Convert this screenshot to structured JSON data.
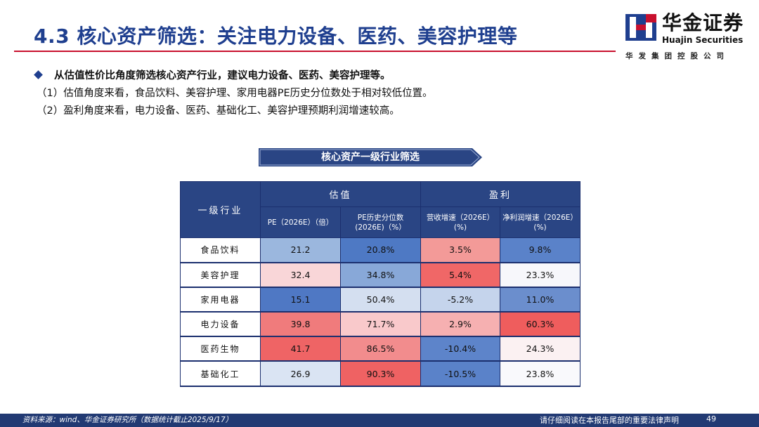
{
  "header": {
    "title": "4.3 核心资产筛选：关注电力设备、医药、美容护理等",
    "logo_cn": "华金证券",
    "logo_en": "Huajin Securities",
    "logo_sub": "华发集团控股公司"
  },
  "bullets": {
    "main": "从估值性价比角度筛选核心资产行业，建议电力设备、医药、美容护理等。",
    "sub1": "（1）估值角度来看，食品饮料、美容护理、家用电器PE历史分位数处于相对较低位置。",
    "sub2": "（2）盈利角度来看，电力设备、医药、基础化工、美容护理预期利润增速较高。"
  },
  "table": {
    "title": "核心资产一级行业筛选",
    "col_industry": "一级行业",
    "group_valuation": "估值",
    "group_profit": "盈利",
    "col_pe": "PE（2026E）（倍）",
    "col_pe_pct_l1": "PE历史分位数",
    "col_pe_pct_l2": "(2026E)（%）",
    "col_rev_l1": "营收增速（2026E）",
    "col_rev_l2": "(%)",
    "col_np_l1": "净利润增速（2026E）",
    "col_np_l2": "(%)",
    "rows": [
      {
        "industry": "食品饮料",
        "pe": "21.2",
        "pe_pct": "20.8%",
        "rev": "3.5%",
        "np": "9.8%",
        "c_pe": "#9bb7de",
        "c_pct": "#4e79c4",
        "c_rev": "#f39a98",
        "c_np": "#5a82c9"
      },
      {
        "industry": "美容护理",
        "pe": "32.4",
        "pe_pct": "34.8%",
        "rev": "5.4%",
        "np": "23.3%",
        "c_pe": "#f9d6d8",
        "c_pct": "#88a8d8",
        "c_rev": "#f06767",
        "c_np": "#f7f7fb"
      },
      {
        "industry": "家用电器",
        "pe": "15.1",
        "pe_pct": "50.4%",
        "rev": "-5.2%",
        "np": "11.0%",
        "c_pe": "#4f78c4",
        "c_pct": "#d4dff0",
        "c_rev": "#c5d4ec",
        "c_np": "#6b8ecd"
      },
      {
        "industry": "电力设备",
        "pe": "39.8",
        "pe_pct": "71.7%",
        "rev": "2.9%",
        "np": "60.3%",
        "c_pe": "#f07b7c",
        "c_pct": "#f9c9cb",
        "c_rev": "#f6b0b1",
        "c_np": "#ef5d5d"
      },
      {
        "industry": "医药生物",
        "pe": "41.7",
        "pe_pct": "86.5%",
        "rev": "-10.4%",
        "np": "24.3%",
        "c_pe": "#ef6465",
        "c_pct": "#f28c8d",
        "c_rev": "#5d84ca",
        "c_np": "#fbf1f2"
      },
      {
        "industry": "基础化工",
        "pe": "26.9",
        "pe_pct": "90.3%",
        "rev": "-10.5%",
        "np": "23.8%",
        "c_pe": "#dae4f3",
        "c_pct": "#ef6263",
        "c_rev": "#5a82c9",
        "c_np": "#f9f9fc"
      }
    ]
  },
  "footer": {
    "source": "资料来源：wind、华金证券研究所（数据统计截止2025/9/17）",
    "disclaimer": "请仔细阅读在本报告尾部的重要法律声明",
    "page": "49"
  },
  "colors": {
    "brand_blue": "#1f3f8f",
    "rule_red": "#c8102e",
    "header_fill": "#2a4584",
    "footer_fill": "#223a73"
  }
}
